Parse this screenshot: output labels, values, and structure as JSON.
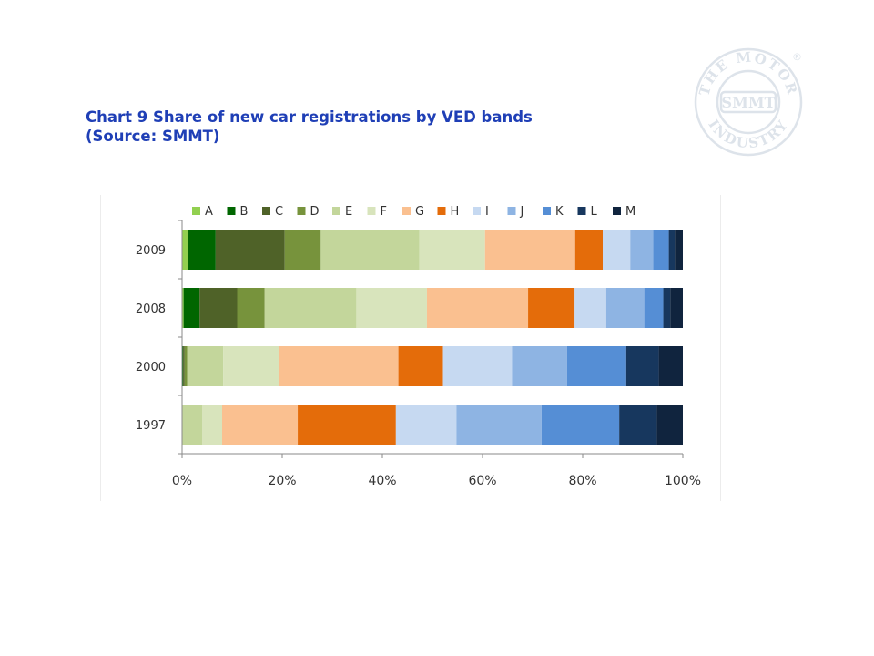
{
  "title": {
    "line1": "Chart 9 Share of new car registrations by VED bands",
    "line2": "(Source: SMMT)"
  },
  "logo": {
    "ring_text": "THE MOTOR INDUSTRY",
    "center_text": "SMMT",
    "registered": "®",
    "color": "#dde3ea"
  },
  "chart_data": {
    "type": "bar",
    "orientation": "horizontal",
    "stacked": true,
    "percent_stacked": true,
    "categories": [
      "2009",
      "2008",
      "2000",
      "1997"
    ],
    "series": [
      {
        "name": "A",
        "color": "#92d050",
        "values": [
          1.2,
          0.3,
          0.0,
          0.0
        ]
      },
      {
        "name": "B",
        "color": "#006600",
        "values": [
          5.5,
          3.2,
          0.2,
          0.0
        ]
      },
      {
        "name": "C",
        "color": "#4f6228",
        "values": [
          13.8,
          7.5,
          0.3,
          0.0
        ]
      },
      {
        "name": "D",
        "color": "#77933c",
        "values": [
          7.2,
          5.5,
          0.5,
          0.0
        ]
      },
      {
        "name": "E",
        "color": "#c3d69b",
        "values": [
          19.7,
          18.3,
          7.2,
          4.0
        ]
      },
      {
        "name": "F",
        "color": "#d8e4bc",
        "values": [
          13.1,
          14.1,
          11.2,
          4.0
        ]
      },
      {
        "name": "G",
        "color": "#fac090",
        "values": [
          18.0,
          20.2,
          23.8,
          15.1
        ]
      },
      {
        "name": "H",
        "color": "#e46c0a",
        "values": [
          5.5,
          9.3,
          8.9,
          19.6
        ]
      },
      {
        "name": "I",
        "color": "#c6d9f1",
        "values": [
          5.5,
          6.3,
          13.8,
          12.1
        ]
      },
      {
        "name": "J",
        "color": "#8eb4e3",
        "values": [
          4.6,
          7.6,
          11.0,
          17.0
        ]
      },
      {
        "name": "K",
        "color": "#558ed5",
        "values": [
          3.1,
          3.8,
          11.8,
          15.5
        ]
      },
      {
        "name": "L",
        "color": "#17375e",
        "values": [
          1.2,
          1.4,
          6.5,
          7.5
        ]
      },
      {
        "name": "M",
        "color": "#10243e",
        "values": [
          1.6,
          2.5,
          4.8,
          5.2
        ]
      }
    ],
    "xlim": [
      0,
      100
    ],
    "xticks": [
      "0%",
      "20%",
      "40%",
      "60%",
      "80%",
      "100%"
    ],
    "grid": false,
    "legend": "top"
  }
}
